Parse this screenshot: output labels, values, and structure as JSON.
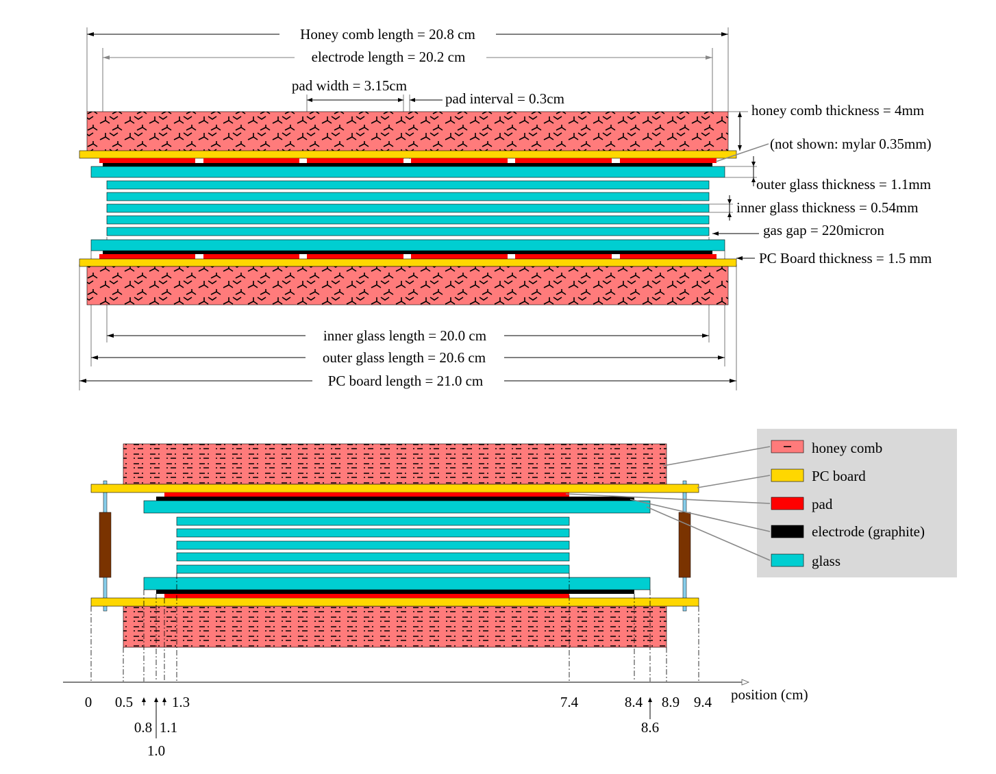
{
  "top_figure": {
    "labels": {
      "honeycomb_length": "Honey comb length = 20.8 cm",
      "electrode_length": "electrode length = 20.2 cm",
      "pad_width": "pad width = 3.15cm",
      "pad_interval": "pad interval = 0.3cm",
      "honeycomb_thickness": "honey comb thickness = 4mm",
      "not_shown": "(not shown: mylar 0.35mm)",
      "outer_glass_thickness": "outer glass thickness = 1.1mm",
      "inner_glass_thickness": "inner glass thickness = 0.54mm",
      "gas_gap": "gas gap = 220micron",
      "pcb_thickness": "PC Board thickness = 1.5 mm",
      "inner_glass_length": "inner glass length = 20.0 cm",
      "outer_glass_length": "outer glass length = 20.6 cm",
      "pcb_length": "PC board length = 21.0 cm"
    }
  },
  "legend": {
    "items": [
      {
        "label": "honey comb",
        "color": "#ff7b7b"
      },
      {
        "label": "PC board",
        "color": "#ffd700"
      },
      {
        "label": "pad",
        "color": "#ff0000"
      },
      {
        "label": "electrode (graphite)",
        "color": "#000000"
      },
      {
        "label": "glass",
        "color": "#00ced1"
      }
    ]
  },
  "axis": {
    "label": "position (cm)",
    "ticks_row1": [
      "0",
      "0.5",
      "1.3",
      "7.4",
      "8.4",
      "8.9",
      "9.4"
    ],
    "ticks_row2": [
      "0.8",
      "1.1",
      "8.6"
    ],
    "ticks_row3": [
      "1.0"
    ]
  },
  "colors": {
    "honeycomb": "#ff7b7b",
    "pcb": "#ffd700",
    "pad": "#ff0000",
    "electrode": "#000000",
    "glass": "#00ced1",
    "spacer": "#7a3300",
    "rod": "#87ceeb",
    "legend_bg": "#d9d9d9"
  }
}
